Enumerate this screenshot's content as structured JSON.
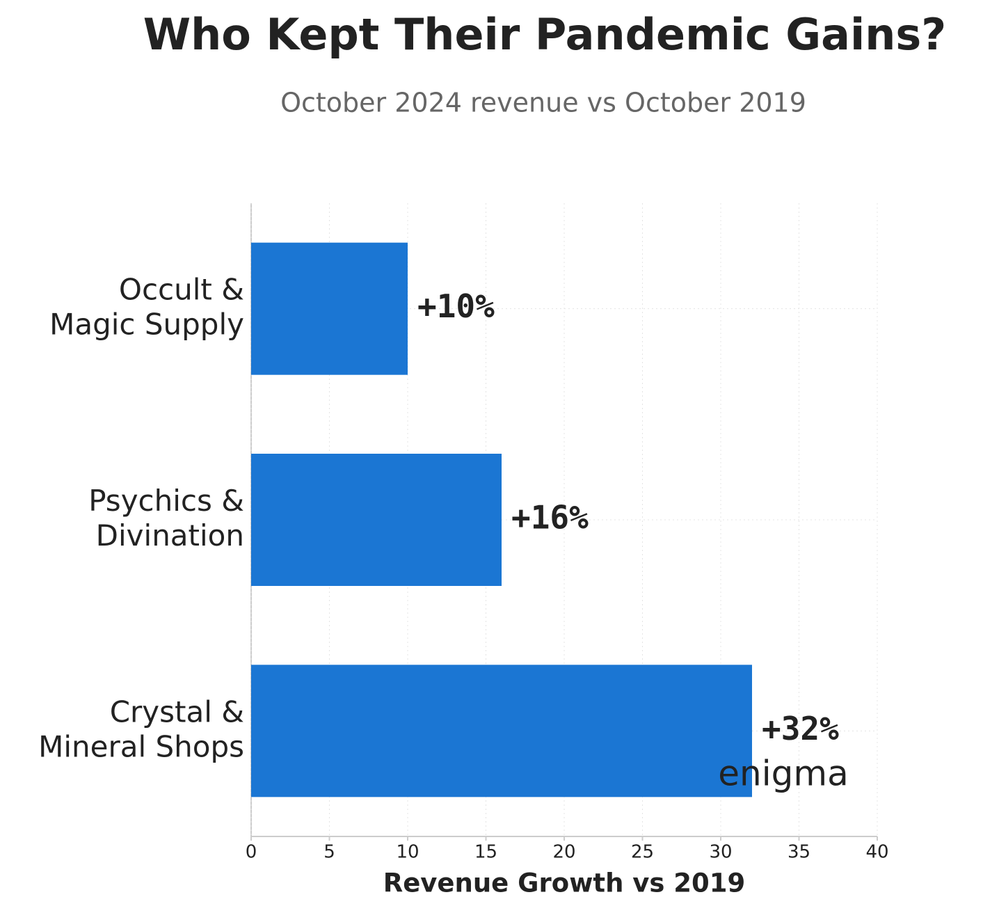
{
  "chart_data": {
    "type": "barh",
    "title": "Who Kept Their Pandemic Gains?",
    "subtitle": "October 2024 revenue vs October 2019",
    "x_label": "Revenue Growth vs 2019",
    "categories": [
      "Occult &\nMagic Supply",
      "Psychics &\nDivination",
      "Crystal &\nMineral Shops"
    ],
    "values": [
      10,
      16,
      32
    ],
    "value_labels": [
      "+10%",
      "+16%",
      "+32%"
    ],
    "color": "#1b76d3",
    "xlim": [
      0,
      40
    ],
    "xticks": [
      0,
      5,
      10,
      15,
      20,
      25,
      30,
      35,
      40
    ],
    "grid": true,
    "logo": "enigma"
  }
}
